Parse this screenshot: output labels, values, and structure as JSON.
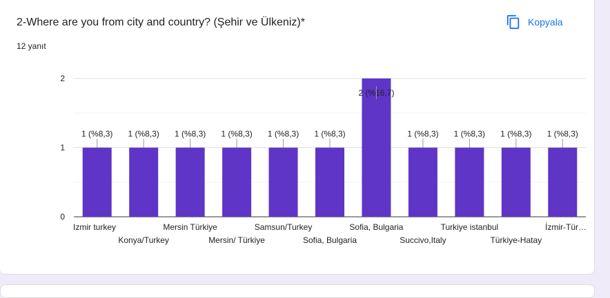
{
  "question": {
    "title": "2-Where are you from city and country? (Şehir ve Ülkeniz)*",
    "response_count": "12 yanıt",
    "copy_label": "Kopyala"
  },
  "colors": {
    "bar": "#5e35c6",
    "accent": "#1a73e8"
  },
  "chart_data": {
    "type": "bar",
    "categories": [
      "Izmir turkey",
      "Konya/Turkey",
      "Mersin Türkiye",
      "Mersin/ Türkiye",
      "Samsun/Turkey",
      "Sofia, Bulgaria",
      "Sofia, Bulgaria",
      "Succivo,Italy",
      "Turkiye istanbul",
      "Türkiye-Hatay",
      "İzmir-Tür…"
    ],
    "values": [
      1,
      1,
      1,
      1,
      1,
      1,
      2,
      1,
      1,
      1,
      1
    ],
    "data_labels": [
      "1 (%8,3)",
      "1 (%8,3)",
      "1 (%8,3)",
      "1 (%8,3)",
      "1 (%8,3)",
      "1 (%8,3)",
      "2 (%16,7)",
      "1 (%8,3)",
      "1 (%8,3)",
      "1 (%8,3)",
      "1 (%8,3)"
    ],
    "yticks": [
      "0",
      "1",
      "2"
    ],
    "ylim": [
      0,
      2
    ],
    "grid": true
  }
}
